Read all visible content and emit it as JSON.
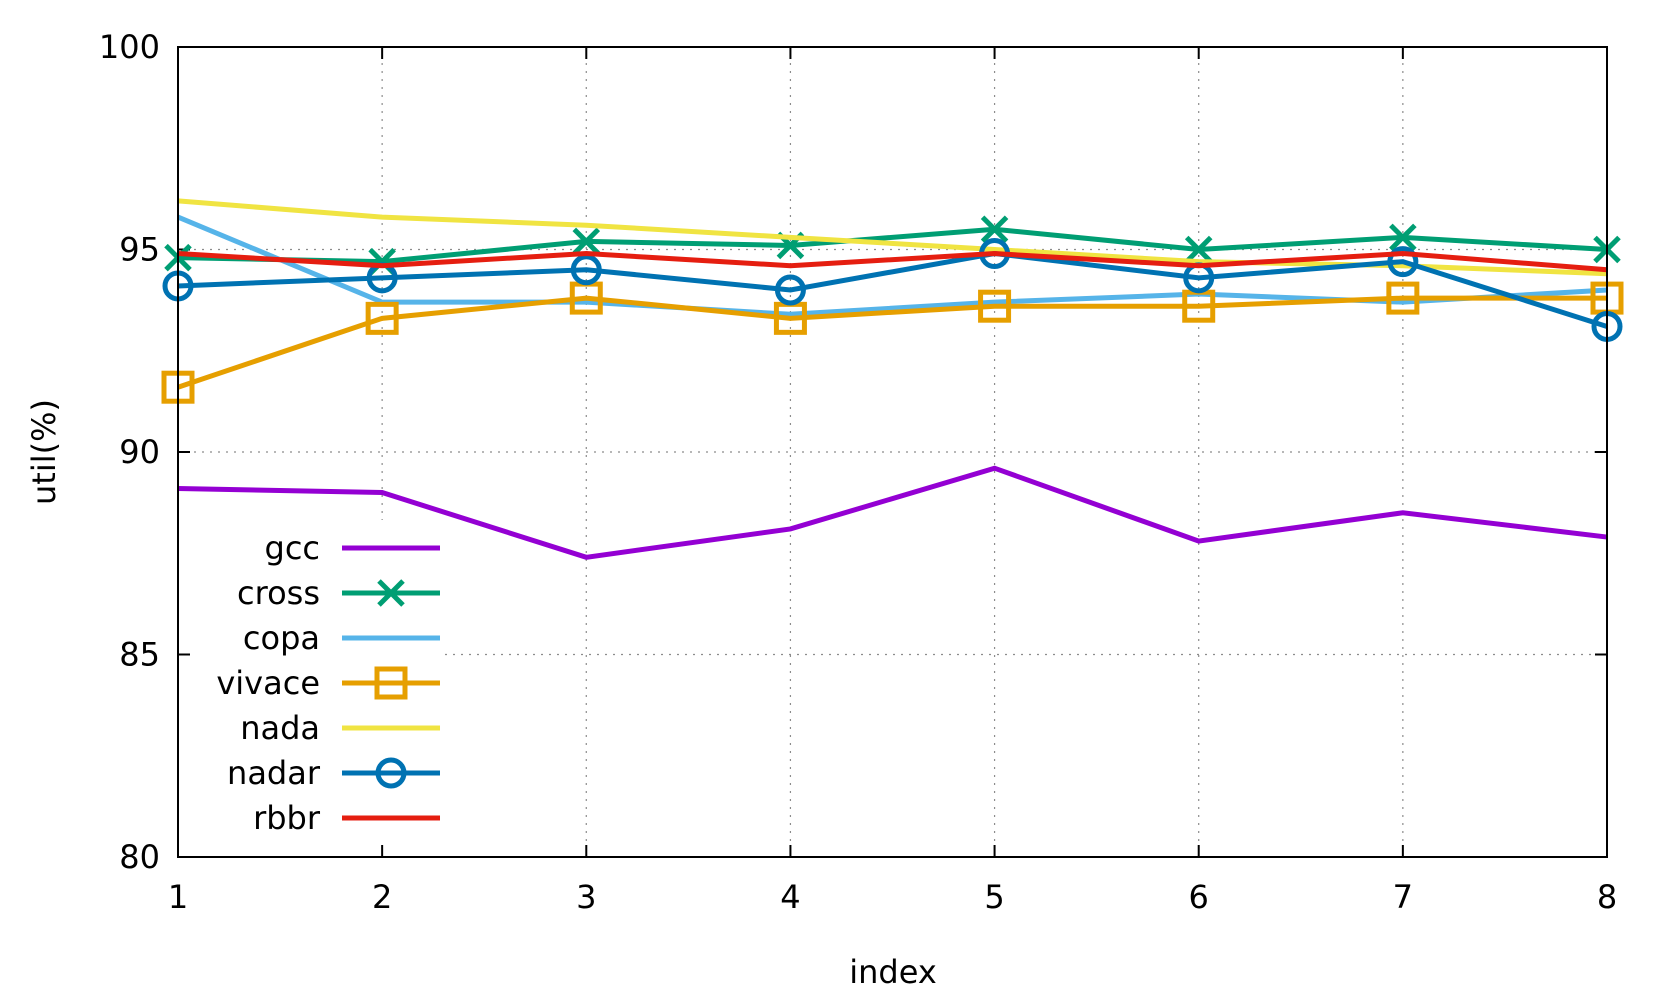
{
  "chart_data": {
    "type": "line",
    "title": "",
    "xlabel": "index",
    "ylabel": "util(%)",
    "xlim": [
      1,
      8
    ],
    "ylim": [
      80,
      100
    ],
    "x": [
      1,
      2,
      3,
      4,
      5,
      6,
      7,
      8
    ],
    "xticks": [
      "1",
      "2",
      "3",
      "4",
      "5",
      "6",
      "7",
      "8"
    ],
    "yticks": [
      "80",
      "85",
      "90",
      "95",
      "100"
    ],
    "grid": true,
    "legend_position": "bottom-left",
    "series": [
      {
        "name": "gcc",
        "color": "#9400d3",
        "marker": "none",
        "values": [
          89.1,
          89.0,
          87.4,
          88.1,
          89.6,
          87.8,
          88.5,
          87.9
        ]
      },
      {
        "name": "cross",
        "color": "#009e73",
        "marker": "cross",
        "values": [
          94.8,
          94.7,
          95.2,
          95.1,
          95.5,
          95.0,
          95.3,
          95.0
        ]
      },
      {
        "name": "copa",
        "color": "#56b4e9",
        "marker": "none",
        "values": [
          95.8,
          93.7,
          93.7,
          93.4,
          93.7,
          93.9,
          93.7,
          94.0
        ]
      },
      {
        "name": "vivace",
        "color": "#e69f00",
        "marker": "square",
        "values": [
          91.6,
          93.3,
          93.8,
          93.3,
          93.6,
          93.6,
          93.8,
          93.8
        ]
      },
      {
        "name": "nada",
        "color": "#f0e442",
        "marker": "none",
        "values": [
          96.2,
          95.8,
          95.6,
          95.3,
          95.0,
          94.7,
          94.6,
          94.4
        ]
      },
      {
        "name": "nadar",
        "color": "#0072b2",
        "marker": "circle",
        "values": [
          94.1,
          94.3,
          94.5,
          94.0,
          94.9,
          94.3,
          94.7,
          93.1
        ]
      },
      {
        "name": "rbbr",
        "color": "#e51e10",
        "marker": "none",
        "values": [
          94.9,
          94.6,
          94.9,
          94.6,
          94.9,
          94.6,
          94.9,
          94.5
        ]
      }
    ]
  }
}
